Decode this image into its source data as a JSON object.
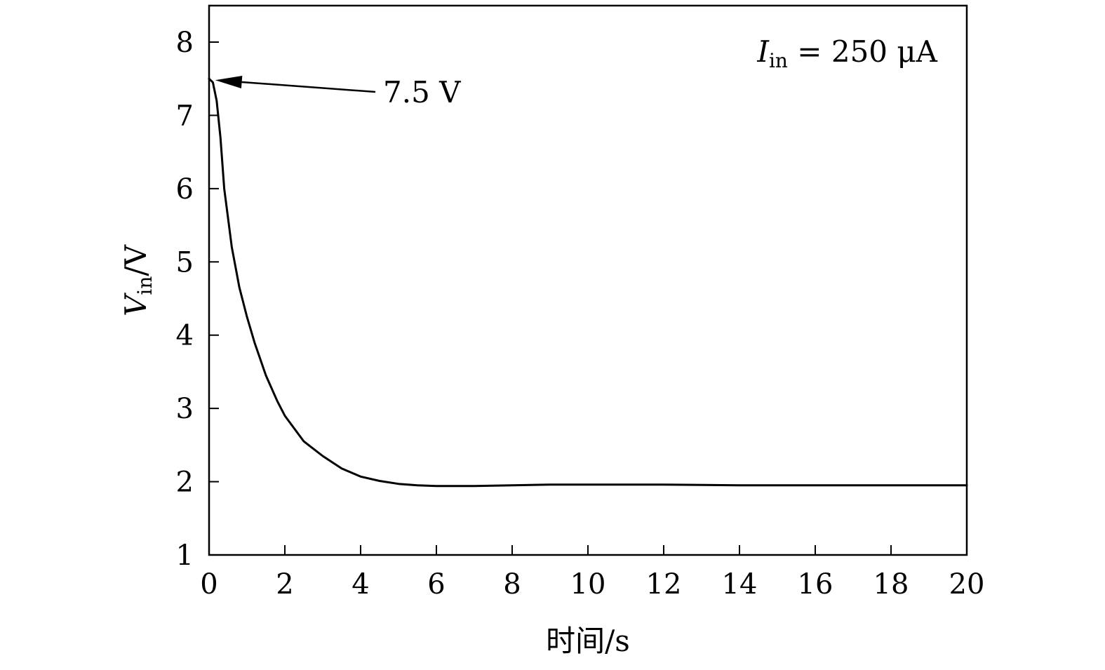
{
  "chart_data": {
    "type": "line",
    "xlabel": "时间/s",
    "ylabel": {
      "main": "V",
      "sub": "in",
      "unit": "/V"
    },
    "xlim": [
      0,
      20
    ],
    "ylim": [
      1,
      8.5
    ],
    "x_ticks": [
      0,
      2,
      4,
      6,
      8,
      10,
      12,
      14,
      16,
      18,
      20
    ],
    "y_ticks": [
      1,
      2,
      3,
      4,
      5,
      6,
      7,
      8
    ],
    "grid": false,
    "legend": {
      "main": "I",
      "sub": "in",
      "rest": " = 250 μA"
    },
    "annotation": {
      "text": "7.5 V",
      "x": 0.05,
      "y": 7.5
    },
    "series": [
      {
        "color": "#000000",
        "x": [
          0,
          0.1,
          0.2,
          0.3,
          0.4,
          0.5,
          0.6,
          0.8,
          1.0,
          1.2,
          1.5,
          1.8,
          2.0,
          2.5,
          3.0,
          3.5,
          4.0,
          4.5,
          5.0,
          5.5,
          6.0,
          6.5,
          7.0,
          8.0,
          9.0,
          10.0,
          12.0,
          14.0,
          16.0,
          18.0,
          20.0
        ],
        "y": [
          7.5,
          7.45,
          7.2,
          6.7,
          6.0,
          5.6,
          5.2,
          4.65,
          4.25,
          3.9,
          3.45,
          3.1,
          2.9,
          2.55,
          2.35,
          2.18,
          2.07,
          2.01,
          1.97,
          1.95,
          1.94,
          1.94,
          1.94,
          1.95,
          1.96,
          1.96,
          1.96,
          1.95,
          1.95,
          1.95,
          1.95
        ]
      }
    ]
  }
}
